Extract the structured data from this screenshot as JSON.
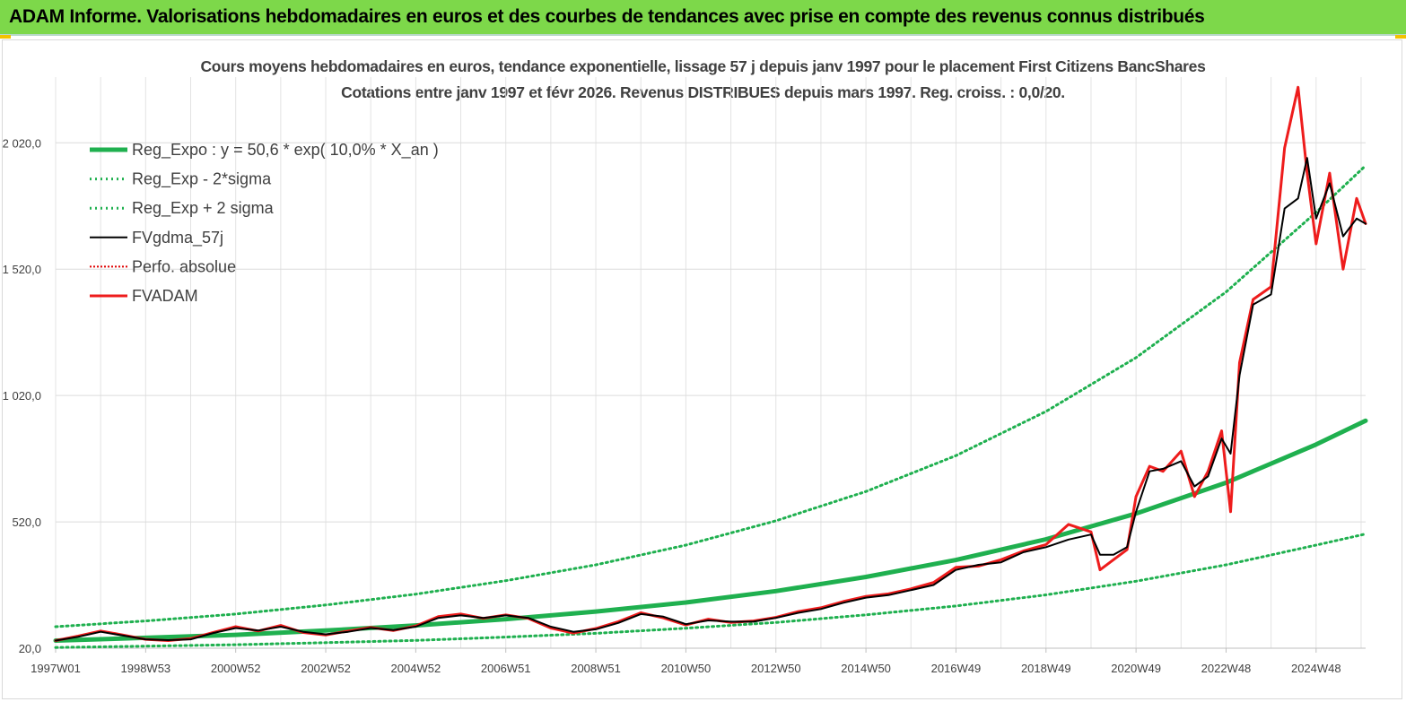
{
  "banner": {
    "title": "ADAM Informe. Valorisations hebdomadaires en euros et des courbes de tendances avec prise en compte des revenus connus distribués"
  },
  "colors": {
    "banner_bg": "#7dd84a",
    "reg_expo": "#1fb04f",
    "sigma": "#1fb04f",
    "fvgdma": "#000000",
    "perfo": "#e00000",
    "fvadam": "#ee1c1c"
  },
  "chart_data": {
    "type": "line",
    "title": "Cours moyens hebdomadaires en euros, tendance exponentielle, lissage 57 j depuis janv 1997 pour le placement First Citizens BancShares",
    "subtitle": "Cotations entre janv 1997 et févr 2026. Revenus DISTRIBUES depuis mars 1997. Reg. croiss. : 0,0/20.",
    "xlabel": "",
    "ylabel": "",
    "xlim": [
      1997.0,
      2026.1
    ],
    "ylim": [
      20,
      2280
    ],
    "yticks": [
      20,
      520,
      1020,
      1520,
      2020
    ],
    "ytick_labels": [
      "20,0",
      "520,0",
      "1 020,0",
      "1 520,0",
      "2 020,0"
    ],
    "xticks": [
      1997.0,
      1999.0,
      2001.0,
      2003.0,
      2005.0,
      2007.0,
      2009.0,
      2011.0,
      2013.0,
      2015.0,
      2017.0,
      2019.0,
      2021.0,
      2023.0,
      2025.0
    ],
    "xtick_labels": [
      "1997W01",
      "1998W53",
      "2000W52",
      "2002W52",
      "2004W52",
      "2006W51",
      "2008W51",
      "2010W50",
      "2012W50",
      "2014W50",
      "2016W49",
      "2018W49",
      "2020W49",
      "2022W48",
      "2024W48"
    ],
    "legend_position": "top-left",
    "series": [
      {
        "name": "Reg_Expo : y = 50,6 * exp( 10,0% *  X_an )",
        "style": "thick",
        "x": [
          1997,
          1999,
          2001,
          2003,
          2005,
          2007,
          2009,
          2011,
          2013,
          2015,
          2017,
          2019,
          2021,
          2023,
          2025,
          2026.1
        ],
        "y": [
          50,
          61,
          73,
          90,
          110,
          135,
          165,
          201,
          246,
          302,
          369,
          451,
          553,
          675,
          826,
          920
        ]
      },
      {
        "name": "Reg_Exp - 2*sigma",
        "style": "dotted",
        "x": [
          1997,
          1999,
          2001,
          2003,
          2005,
          2007,
          2009,
          2011,
          2013,
          2015,
          2017,
          2019,
          2021,
          2023,
          2025,
          2026.1
        ],
        "y": [
          23,
          28,
          34,
          42,
          51,
          64,
          79,
          99,
          122,
          152,
          187,
          231,
          285,
          350,
          428,
          472
        ]
      },
      {
        "name": "Reg_Exp + 2 sigma",
        "style": "dotted",
        "x": [
          1997,
          1999,
          2001,
          2003,
          2005,
          2007,
          2009,
          2011,
          2013,
          2015,
          2017,
          2019,
          2021,
          2023,
          2025,
          2026.1
        ],
        "y": [
          105,
          128,
          155,
          191,
          234,
          287,
          350,
          428,
          524,
          640,
          782,
          957,
          1170,
          1430,
          1745,
          1930
        ]
      },
      {
        "name": "FVgdma_57j",
        "style": "thin",
        "x": [
          1997.0,
          1997.5,
          1998.0,
          1998.5,
          1999.0,
          1999.5,
          2000.0,
          2000.5,
          2001.0,
          2001.5,
          2002.0,
          2002.5,
          2003.0,
          2003.5,
          2004.0,
          2004.5,
          2005.0,
          2005.5,
          2006.0,
          2006.5,
          2007.0,
          2007.5,
          2008.0,
          2008.5,
          2009.0,
          2009.5,
          2010.0,
          2010.5,
          2011.0,
          2011.5,
          2012.0,
          2012.5,
          2013.0,
          2013.5,
          2014.0,
          2014.5,
          2015.0,
          2015.5,
          2016.0,
          2016.5,
          2017.0,
          2017.5,
          2018.0,
          2018.5,
          2019.0,
          2019.5,
          2020.0,
          2020.2,
          2020.5,
          2020.8,
          2021.0,
          2021.3,
          2021.6,
          2022.0,
          2022.3,
          2022.6,
          2022.9,
          2023.1,
          2023.3,
          2023.6,
          2024.0,
          2024.3,
          2024.6,
          2024.8,
          2025.0,
          2025.3,
          2025.6,
          2025.9,
          2026.1
        ],
        "y": [
          50,
          65,
          85,
          70,
          55,
          52,
          55,
          80,
          100,
          90,
          105,
          85,
          75,
          85,
          100,
          92,
          105,
          140,
          150,
          140,
          150,
          140,
          105,
          85,
          95,
          120,
          155,
          145,
          115,
          130,
          125,
          125,
          140,
          160,
          175,
          200,
          220,
          230,
          250,
          270,
          330,
          350,
          360,
          400,
          420,
          450,
          470,
          390,
          390,
          420,
          560,
          720,
          730,
          760,
          660,
          700,
          850,
          790,
          1100,
          1380,
          1420,
          1760,
          1800,
          1960,
          1720,
          1860,
          1650,
          1720,
          1700
        ]
      },
      {
        "name": "Perfo. absolue",
        "style": "dotted-thin",
        "x": [],
        "y": []
      },
      {
        "name": "FVADAM",
        "style": "medium",
        "x": [
          1997.0,
          1997.5,
          1998.0,
          1998.5,
          1999.0,
          1999.5,
          2000.0,
          2000.5,
          2001.0,
          2001.5,
          2002.0,
          2002.5,
          2003.0,
          2003.5,
          2004.0,
          2004.5,
          2005.0,
          2005.5,
          2006.0,
          2006.5,
          2007.0,
          2007.5,
          2008.0,
          2008.5,
          2009.0,
          2009.5,
          2010.0,
          2010.5,
          2011.0,
          2011.5,
          2012.0,
          2012.5,
          2013.0,
          2013.5,
          2014.0,
          2014.5,
          2015.0,
          2015.5,
          2016.0,
          2016.5,
          2017.0,
          2017.5,
          2018.0,
          2018.5,
          2019.0,
          2019.5,
          2020.0,
          2020.2,
          2020.5,
          2020.8,
          2021.0,
          2021.3,
          2021.6,
          2022.0,
          2022.3,
          2022.6,
          2022.9,
          2023.1,
          2023.3,
          2023.6,
          2024.0,
          2024.3,
          2024.6,
          2024.8,
          2025.0,
          2025.3,
          2025.6,
          2025.9,
          2026.1
        ],
        "y": [
          50,
          68,
          88,
          72,
          55,
          50,
          58,
          82,
          105,
          88,
          110,
          82,
          72,
          88,
          102,
          90,
          108,
          145,
          155,
          138,
          152,
          138,
          100,
          80,
          98,
          125,
          160,
          140,
          112,
          135,
          122,
          128,
          142,
          165,
          180,
          205,
          225,
          235,
          255,
          280,
          340,
          345,
          370,
          405,
          430,
          510,
          480,
          330,
          370,
          410,
          620,
          740,
          720,
          800,
          620,
          720,
          880,
          560,
          1150,
          1400,
          1450,
          2000,
          2240,
          1900,
          1620,
          1900,
          1520,
          1800,
          1700
        ]
      }
    ]
  }
}
